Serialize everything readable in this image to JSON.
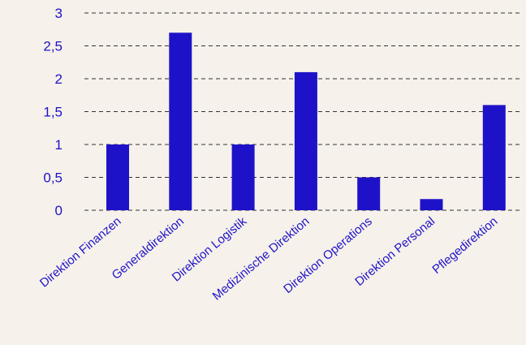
{
  "colors": {
    "background": "#f6f1ea",
    "bar": "#1e12c8",
    "text": "#1e12c8",
    "grid": "#333333"
  },
  "chart_data": {
    "type": "bar",
    "categories": [
      "Direktion Finanzen",
      "Generaldirektion",
      "Direktion Logistik",
      "Medizinische Direktion",
      "Direktion Operations",
      "Direktion Personal",
      "Pflegedirektion"
    ],
    "values": [
      1.0,
      2.7,
      1.0,
      2.1,
      0.5,
      0.17,
      1.6
    ],
    "y_ticks": [
      "0",
      "0,5",
      "1",
      "1,5",
      "2",
      "2,5",
      "3"
    ],
    "ylim": [
      0,
      3
    ],
    "grid": true,
    "grid_style": "dashed",
    "legend": false
  }
}
